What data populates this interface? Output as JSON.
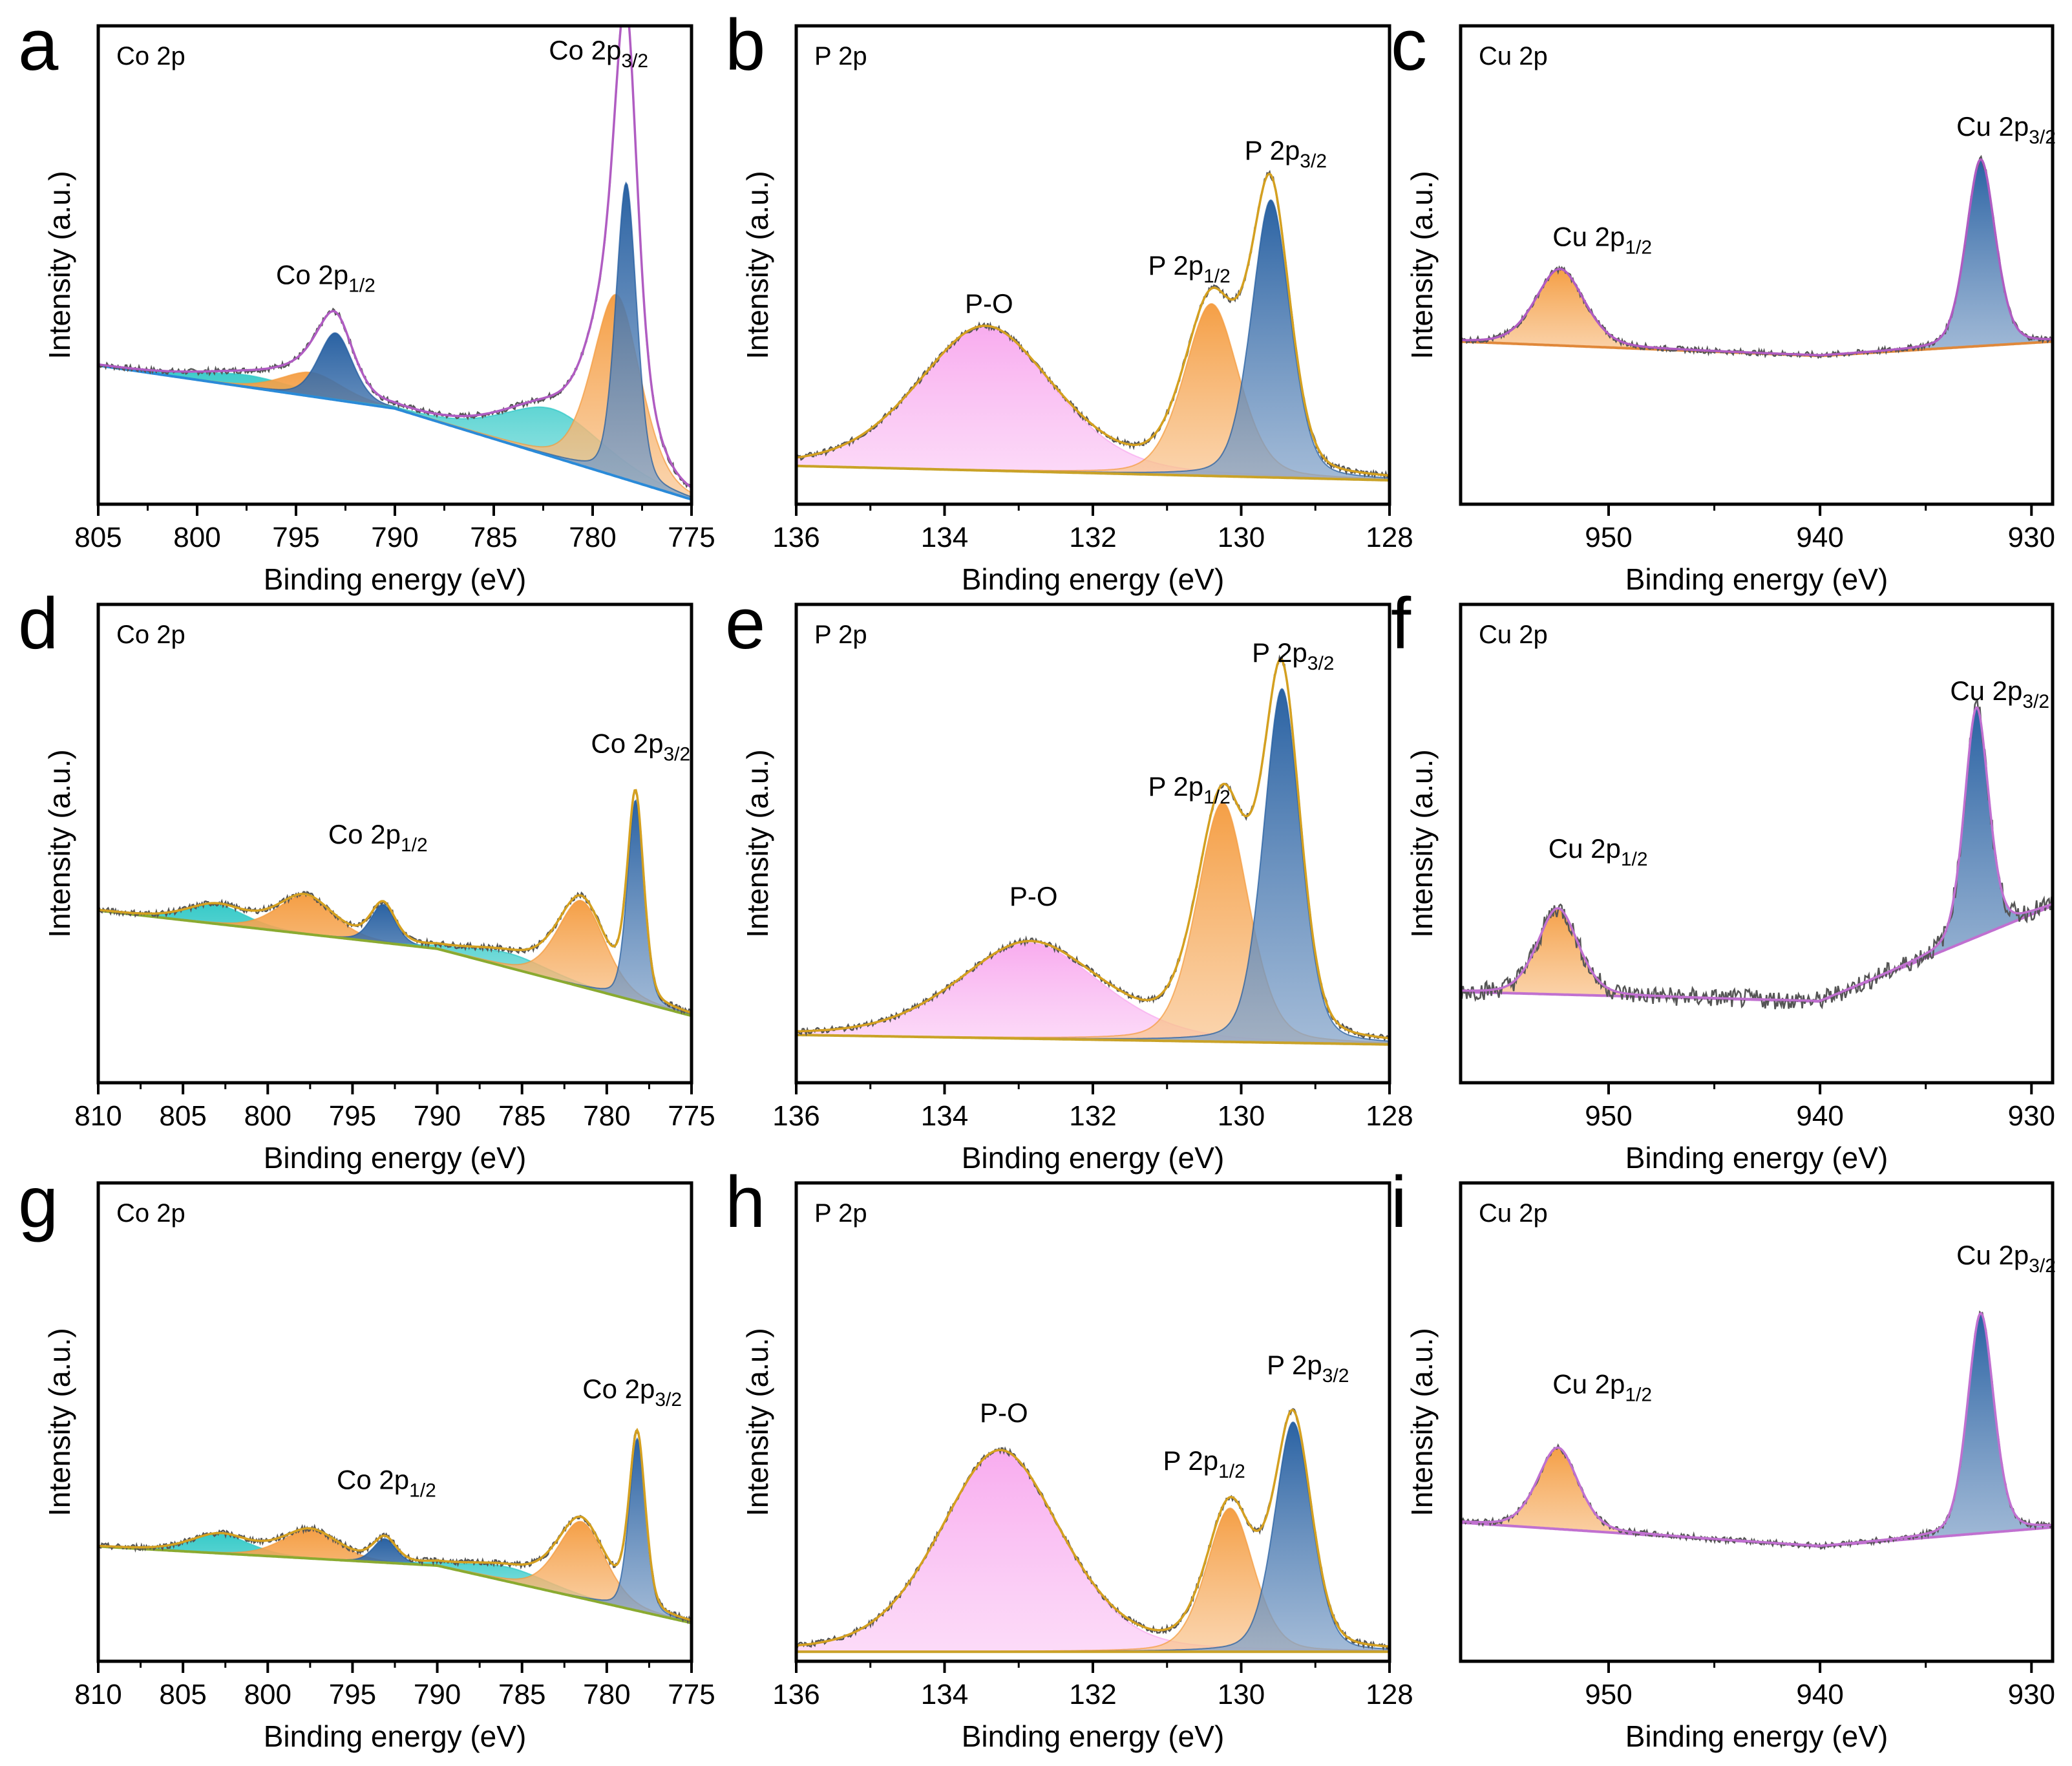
{
  "figure": {
    "colors": {
      "blue": "#1f5a9e",
      "orange": "#f49a3c",
      "cyan": "#2ec8c6",
      "pink": "#f8a8ee",
      "envelope_purple": "#b05cc2",
      "envelope_gold": "#d4a020",
      "raw": "#555555",
      "baseline_blue": "#2a8ad8",
      "baseline_green": "#8aaa30",
      "baseline_orange": "#e0883a",
      "baseline_purple": "#c070d0"
    }
  },
  "chart_data": [
    {
      "letter": "a",
      "title": "Co 2p",
      "type": "area",
      "xlabel": "Binding energy (eV)",
      "ylabel": "Intensity (a.u.)",
      "xlim": [
        805,
        775
      ],
      "ylim": [
        0,
        1
      ],
      "xticks": [
        805,
        800,
        795,
        790,
        785,
        780,
        775
      ],
      "xtick_labels": [
        "805",
        "800",
        "795",
        "790",
        "785",
        "780",
        "775"
      ],
      "baseline": {
        "x": [
          805,
          790,
          775
        ],
        "y": [
          0.29,
          0.2,
          0.01
        ],
        "color": "baseline_blue"
      },
      "peaks": [
        {
          "center": 797.5,
          "height": 0.025,
          "width": 2.5,
          "color": "cyan"
        },
        {
          "center": 794.2,
          "height": 0.05,
          "width": 1.6,
          "color": "orange"
        },
        {
          "center": 793.0,
          "height": 0.14,
          "width": 0.9,
          "color": "blue"
        },
        {
          "center": 782.0,
          "height": 0.1,
          "width": 2.6,
          "color": "cyan"
        },
        {
          "center": 778.8,
          "height": 0.38,
          "width": 1.25,
          "color": "orange"
        },
        {
          "center": 778.3,
          "height": 0.62,
          "width": 0.55,
          "color": "blue"
        }
      ],
      "envelope_color": "envelope_purple",
      "raw": true,
      "annotations": [
        {
          "main": "Co 2p",
          "sub": "1/2",
          "x": 793.5,
          "y": 0.46
        },
        {
          "main": "Co 2p",
          "sub": "3/2",
          "x": 779.7,
          "y": 0.93
        }
      ]
    },
    {
      "letter": "b",
      "title": "P 2p",
      "type": "area",
      "xlabel": "Binding energy (eV)",
      "ylabel": "Intensity (a.u.)",
      "xlim": [
        136,
        128
      ],
      "ylim": [
        0,
        1
      ],
      "xticks": [
        136,
        134,
        132,
        130,
        128
      ],
      "xtick_labels": [
        "136",
        "134",
        "132",
        "130",
        "128"
      ],
      "baseline": {
        "x": [
          136,
          128
        ],
        "y": [
          0.08,
          0.05
        ],
        "color": "baseline_gold"
      },
      "peaks": [
        {
          "center": 133.45,
          "height": 0.3,
          "width": 0.95,
          "color": "pink"
        },
        {
          "center": 130.4,
          "height": 0.36,
          "width": 0.38,
          "color": "orange"
        },
        {
          "center": 129.6,
          "height": 0.58,
          "width": 0.27,
          "color": "blue"
        }
      ],
      "envelope_color": "envelope_gold",
      "raw": true,
      "annotations": [
        {
          "main": "P-O",
          "sub": "",
          "x": 133.4,
          "y": 0.4
        },
        {
          "main": "P 2p",
          "sub": "1/2",
          "x": 130.7,
          "y": 0.48
        },
        {
          "main": "P 2p",
          "sub": "3/2",
          "x": 129.4,
          "y": 0.72
        }
      ]
    },
    {
      "letter": "c",
      "title": "Cu 2p",
      "type": "area",
      "xlabel": "Binding energy (eV)",
      "ylabel": "Intensity (a.u.)",
      "xlim": [
        957,
        929
      ],
      "ylim": [
        0,
        1
      ],
      "xticks": [
        950,
        940,
        930
      ],
      "xtick_labels": [
        "950",
        "940",
        "930"
      ],
      "baseline": {
        "x": [
          957,
          940,
          929
        ],
        "y": [
          0.34,
          0.31,
          0.34
        ],
        "color": "baseline_orange"
      },
      "peaks": [
        {
          "center": 952.3,
          "height": 0.16,
          "width": 1.2,
          "color": "orange"
        },
        {
          "center": 932.4,
          "height": 0.39,
          "width": 0.72,
          "color": "blue"
        }
      ],
      "envelope_color": "envelope_purple",
      "raw": true,
      "annotations": [
        {
          "main": "Cu 2p",
          "sub": "1/2",
          "x": 950.3,
          "y": 0.54
        },
        {
          "main": "Cu 2p",
          "sub": "3/2",
          "x": 931.2,
          "y": 0.77
        }
      ]
    },
    {
      "letter": "d",
      "title": "Co 2p",
      "type": "area",
      "xlabel": "Binding energy (eV)",
      "ylabel": "Intensity (a.u.)",
      "xlim": [
        810,
        775
      ],
      "ylim": [
        0,
        1
      ],
      "xticks": [
        810,
        805,
        800,
        795,
        790,
        785,
        780,
        775
      ],
      "xtick_labels": [
        "810",
        "805",
        "800",
        "795",
        "790",
        "785",
        "780",
        "775"
      ],
      "baseline": {
        "x": [
          810,
          790,
          775
        ],
        "y": [
          0.36,
          0.28,
          0.14
        ],
        "color": "baseline_green"
      },
      "peaks": [
        {
          "center": 803.0,
          "height": 0.04,
          "width": 1.8,
          "color": "cyan"
        },
        {
          "center": 797.8,
          "height": 0.08,
          "width": 1.7,
          "color": "orange"
        },
        {
          "center": 793.2,
          "height": 0.08,
          "width": 0.75,
          "color": "blue"
        },
        {
          "center": 785.8,
          "height": 0.03,
          "width": 2.5,
          "color": "cyan"
        },
        {
          "center": 781.5,
          "height": 0.18,
          "width": 1.45,
          "color": "orange"
        },
        {
          "center": 778.3,
          "height": 0.42,
          "width": 0.5,
          "color": "blue"
        }
      ],
      "envelope_color": "envelope_gold",
      "raw": true,
      "annotations": [
        {
          "main": "Co 2p",
          "sub": "1/2",
          "x": 793.5,
          "y": 0.5
        },
        {
          "main": "Co 2p",
          "sub": "3/2",
          "x": 778.0,
          "y": 0.69
        }
      ]
    },
    {
      "letter": "e",
      "title": "P 2p",
      "type": "area",
      "xlabel": "Binding energy (eV)",
      "ylabel": "Intensity (a.u.)",
      "xlim": [
        136,
        128
      ],
      "ylim": [
        0,
        1
      ],
      "xticks": [
        136,
        134,
        132,
        130,
        128
      ],
      "xtick_labels": [
        "136",
        "134",
        "132",
        "130",
        "128"
      ],
      "baseline": {
        "x": [
          136,
          128
        ],
        "y": [
          0.1,
          0.08
        ],
        "color": "baseline_gold"
      },
      "peaks": [
        {
          "center": 132.85,
          "height": 0.2,
          "width": 1.0,
          "color": "pink"
        },
        {
          "center": 130.25,
          "height": 0.5,
          "width": 0.36,
          "color": "orange"
        },
        {
          "center": 129.45,
          "height": 0.74,
          "width": 0.26,
          "color": "blue"
        }
      ],
      "envelope_color": "envelope_gold",
      "raw": true,
      "annotations": [
        {
          "main": "P-O",
          "sub": "",
          "x": 132.8,
          "y": 0.37
        },
        {
          "main": "P 2p",
          "sub": "1/2",
          "x": 130.7,
          "y": 0.6
        },
        {
          "main": "P 2p",
          "sub": "3/2",
          "x": 129.3,
          "y": 0.88
        }
      ]
    },
    {
      "letter": "f",
      "title": "Cu 2p",
      "type": "area",
      "xlabel": "Binding energy (eV)",
      "ylabel": "Intensity (a.u.)",
      "xlim": [
        957,
        929
      ],
      "ylim": [
        0,
        1
      ],
      "xticks": [
        950,
        940,
        930
      ],
      "xtick_labels": [
        "950",
        "940",
        "930"
      ],
      "baseline": {
        "x": [
          957,
          940,
          929
        ],
        "y": [
          0.19,
          0.17,
          0.37
        ],
        "color": "baseline_purple"
      },
      "peaks": [
        {
          "center": 952.4,
          "height": 0.18,
          "width": 1.0,
          "color": "orange"
        },
        {
          "center": 932.6,
          "height": 0.48,
          "width": 0.6,
          "color": "blue"
        }
      ],
      "envelope_color": "baseline_purple",
      "raw": true,
      "annotations": [
        {
          "main": "Cu 2p",
          "sub": "1/2",
          "x": 950.5,
          "y": 0.47
        },
        {
          "main": "Cu 2p",
          "sub": "3/2",
          "x": 931.5,
          "y": 0.8
        }
      ]
    },
    {
      "letter": "g",
      "title": "Co 2p",
      "type": "area",
      "xlabel": "Binding energy (eV)",
      "ylabel": "Intensity (a.u.)",
      "xlim": [
        810,
        775
      ],
      "ylim": [
        0,
        1
      ],
      "xticks": [
        810,
        805,
        800,
        795,
        790,
        785,
        780,
        775
      ],
      "xtick_labels": [
        "810",
        "805",
        "800",
        "795",
        "790",
        "785",
        "780",
        "775"
      ],
      "baseline": {
        "x": [
          810,
          790,
          775
        ],
        "y": [
          0.24,
          0.2,
          0.08
        ],
        "color": "baseline_green"
      },
      "peaks": [
        {
          "center": 802.8,
          "height": 0.04,
          "width": 1.8,
          "color": "cyan"
        },
        {
          "center": 797.5,
          "height": 0.06,
          "width": 1.7,
          "color": "orange"
        },
        {
          "center": 793.1,
          "height": 0.05,
          "width": 0.7,
          "color": "blue"
        },
        {
          "center": 785.8,
          "height": 0.03,
          "width": 2.5,
          "color": "cyan"
        },
        {
          "center": 781.5,
          "height": 0.16,
          "width": 1.45,
          "color": "orange"
        },
        {
          "center": 778.2,
          "height": 0.36,
          "width": 0.5,
          "color": "blue"
        }
      ],
      "envelope_color": "envelope_gold",
      "raw": true,
      "annotations": [
        {
          "main": "Co 2p",
          "sub": "1/2",
          "x": 793.0,
          "y": 0.36
        },
        {
          "main": "Co 2p",
          "sub": "3/2",
          "x": 778.5,
          "y": 0.55
        }
      ]
    },
    {
      "letter": "h",
      "title": "P 2p",
      "type": "area",
      "xlabel": "Binding energy (eV)",
      "ylabel": "Intensity (a.u.)",
      "xlim": [
        136,
        128
      ],
      "ylim": [
        0,
        1
      ],
      "xticks": [
        136,
        134,
        132,
        130,
        128
      ],
      "xtick_labels": [
        "136",
        "134",
        "132",
        "130",
        "128"
      ],
      "baseline": {
        "x": [
          136,
          128
        ],
        "y": [
          0.02,
          0.02
        ],
        "color": "baseline_gold"
      },
      "peaks": [
        {
          "center": 133.25,
          "height": 0.42,
          "width": 0.85,
          "color": "pink"
        },
        {
          "center": 130.15,
          "height": 0.3,
          "width": 0.33,
          "color": "orange"
        },
        {
          "center": 129.3,
          "height": 0.48,
          "width": 0.26,
          "color": "blue"
        }
      ],
      "envelope_color": "envelope_gold",
      "raw": true,
      "annotations": [
        {
          "main": "P-O",
          "sub": "",
          "x": 133.2,
          "y": 0.5
        },
        {
          "main": "P 2p",
          "sub": "1/2",
          "x": 130.5,
          "y": 0.4
        },
        {
          "main": "P 2p",
          "sub": "3/2",
          "x": 129.1,
          "y": 0.6
        }
      ]
    },
    {
      "letter": "i",
      "title": "Cu 2p",
      "type": "area",
      "xlabel": "Binding energy (eV)",
      "ylabel": "Intensity (a.u.)",
      "xlim": [
        957,
        929
      ],
      "ylim": [
        0,
        1
      ],
      "xticks": [
        950,
        940,
        930
      ],
      "xtick_labels": [
        "950",
        "940",
        "930"
      ],
      "baseline": {
        "x": [
          957,
          940,
          929
        ],
        "y": [
          0.29,
          0.24,
          0.28
        ],
        "color": "baseline_purple"
      },
      "peaks": [
        {
          "center": 952.4,
          "height": 0.17,
          "width": 1.0,
          "color": "orange"
        },
        {
          "center": 932.4,
          "height": 0.46,
          "width": 0.65,
          "color": "blue"
        }
      ],
      "envelope_color": "baseline_purple",
      "raw": true,
      "annotations": [
        {
          "main": "Cu 2p",
          "sub": "1/2",
          "x": 950.3,
          "y": 0.56
        },
        {
          "main": "Cu 2p",
          "sub": "3/2",
          "x": 931.2,
          "y": 0.83
        }
      ]
    }
  ]
}
